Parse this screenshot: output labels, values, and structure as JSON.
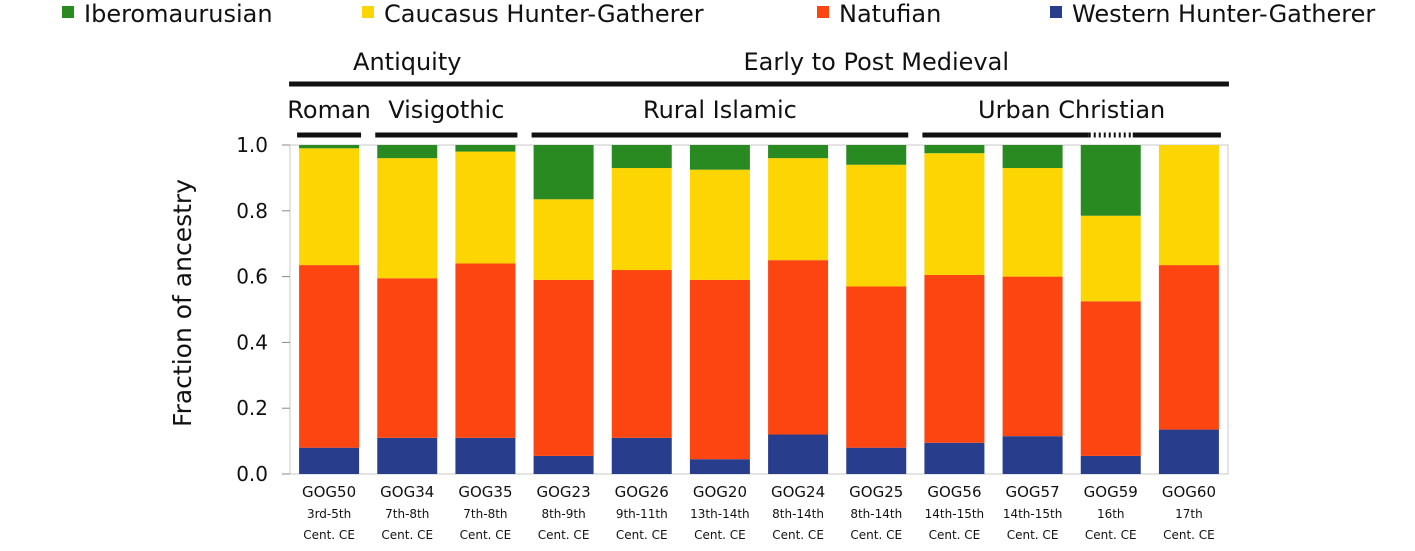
{
  "chart_data": {
    "type": "bar",
    "stacked": true,
    "ylabel": "Fraction of ancestry",
    "ylim": [
      0,
      1
    ],
    "yticks": [
      "0.0",
      "0.2",
      "0.4",
      "0.6",
      "0.8",
      "1.0"
    ],
    "ytick_values": [
      0,
      0.2,
      0.4,
      0.6,
      0.8,
      1.0
    ],
    "legend_position": "top",
    "categories": [
      {
        "sample": "GOG50",
        "date1": "3rd-5th",
        "date2": "Cent. CE"
      },
      {
        "sample": "GOG34",
        "date1": "7th-8th",
        "date2": "Cent. CE"
      },
      {
        "sample": "GOG35",
        "date1": "7th-8th",
        "date2": "Cent. CE"
      },
      {
        "sample": "GOG23",
        "date1": "8th-9th",
        "date2": "Cent. CE"
      },
      {
        "sample": "GOG26",
        "date1": "9th-11th",
        "date2": "Cent. CE"
      },
      {
        "sample": "GOG20",
        "date1": "13th-14th",
        "date2": "Cent. CE"
      },
      {
        "sample": "GOG24",
        "date1": "8th-14th",
        "date2": "Cent. CE"
      },
      {
        "sample": "GOG25",
        "date1": "8th-14th",
        "date2": "Cent. CE"
      },
      {
        "sample": "GOG56",
        "date1": "14th-15th",
        "date2": "Cent. CE"
      },
      {
        "sample": "GOG57",
        "date1": "14th-15th",
        "date2": "Cent. CE"
      },
      {
        "sample": "GOG59",
        "date1": "16th",
        "date2": "Cent. CE"
      },
      {
        "sample": "GOG60",
        "date1": "17th",
        "date2": "Cent. CE"
      }
    ],
    "series": [
      {
        "name": "Western Hunter-Gatherer",
        "color": "#283e8c",
        "values": [
          0.08,
          0.11,
          0.11,
          0.055,
          0.11,
          0.045,
          0.12,
          0.08,
          0.095,
          0.115,
          0.055,
          0.135
        ]
      },
      {
        "name": "Natufian",
        "color": "#fc4510",
        "values": [
          0.555,
          0.485,
          0.53,
          0.535,
          0.51,
          0.545,
          0.53,
          0.49,
          0.51,
          0.485,
          0.47,
          0.5
        ]
      },
      {
        "name": "Caucasus Hunter-Gatherer",
        "color": "#fcd502",
        "values": [
          0.355,
          0.365,
          0.34,
          0.245,
          0.31,
          0.335,
          0.31,
          0.37,
          0.37,
          0.33,
          0.26,
          0.365
        ]
      },
      {
        "name": "Iberomaurusian",
        "color": "#2a8a22",
        "values": [
          0.01,
          0.04,
          0.02,
          0.165,
          0.07,
          0.075,
          0.04,
          0.06,
          0.025,
          0.07,
          0.215,
          0.0
        ]
      }
    ],
    "legend_order": [
      3,
      2,
      1,
      0
    ],
    "period_groups": [
      {
        "label": "Antiquity",
        "from": 0,
        "to": 2
      },
      {
        "label": "Early to Post Medieval",
        "from": 3,
        "to": 11
      }
    ],
    "subgroups": [
      {
        "label": "Roman",
        "from": 0,
        "to": 0
      },
      {
        "label": "Visigothic",
        "from": 1,
        "to": 2
      },
      {
        "label": "Rural Islamic",
        "from": 3,
        "to": 7
      },
      {
        "label": "Urban Christian",
        "from": 8,
        "to": 11,
        "dotted_over": 10
      }
    ]
  }
}
